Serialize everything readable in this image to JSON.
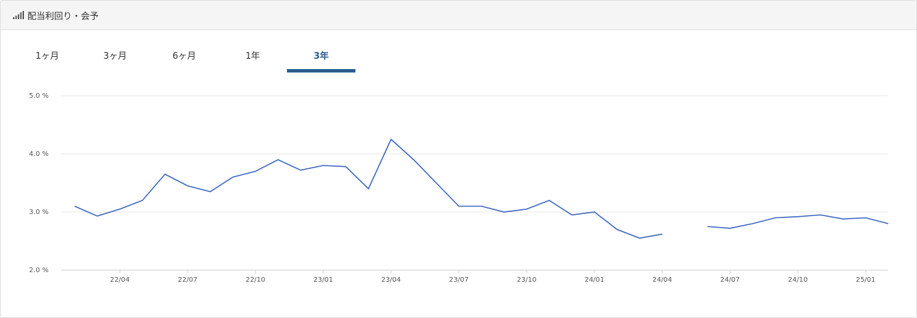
{
  "header": {
    "title": "配当利回り・会予"
  },
  "tabs": {
    "items": [
      "1ヶ月",
      "3ヶ月",
      "6ヶ月",
      "1年",
      "3年"
    ],
    "active": 4
  },
  "chart_data": {
    "type": "line",
    "x": [
      "22/02",
      "22/03",
      "22/04",
      "22/05",
      "22/06",
      "22/07",
      "22/08",
      "22/09",
      "22/10",
      "22/11",
      "22/12",
      "23/01",
      "23/02",
      "23/03",
      "23/04",
      "23/05",
      "23/06",
      "23/07",
      "23/08",
      "23/09",
      "23/10",
      "23/11",
      "23/12",
      "24/01",
      "24/02",
      "24/03",
      "24/04",
      "24/05",
      "24/06",
      "24/07",
      "24/08",
      "24/09",
      "24/10",
      "24/11",
      "24/12",
      "25/01",
      "25/02"
    ],
    "series": [
      {
        "color": "#3a66c0",
        "values": [
          3.1,
          2.93,
          3.05,
          3.2,
          3.65,
          3.45,
          3.35,
          3.6,
          3.7,
          3.9,
          3.72,
          3.8,
          3.78,
          3.4,
          4.25,
          3.9,
          3.5,
          3.1,
          3.1,
          3.0,
          3.05,
          3.2,
          2.95,
          3.0,
          2.7,
          2.55,
          2.62,
          null,
          2.75,
          2.72,
          2.8,
          2.9,
          2.92,
          2.95,
          2.88,
          2.9,
          2.8
        ]
      }
    ],
    "xticks": [
      "22/04",
      "22/07",
      "22/10",
      "23/01",
      "23/04",
      "23/07",
      "23/10",
      "24/01",
      "24/04",
      "24/07",
      "24/10",
      "25/01"
    ],
    "ylim": [
      2,
      5
    ],
    "yticks": [
      {
        "value": 2,
        "label": "2.0 %"
      },
      {
        "value": 3,
        "label": "3.0 %"
      },
      {
        "value": 4,
        "label": "4.0 %"
      },
      {
        "value": 5,
        "label": "5.0 %"
      }
    ],
    "grid": true
  }
}
